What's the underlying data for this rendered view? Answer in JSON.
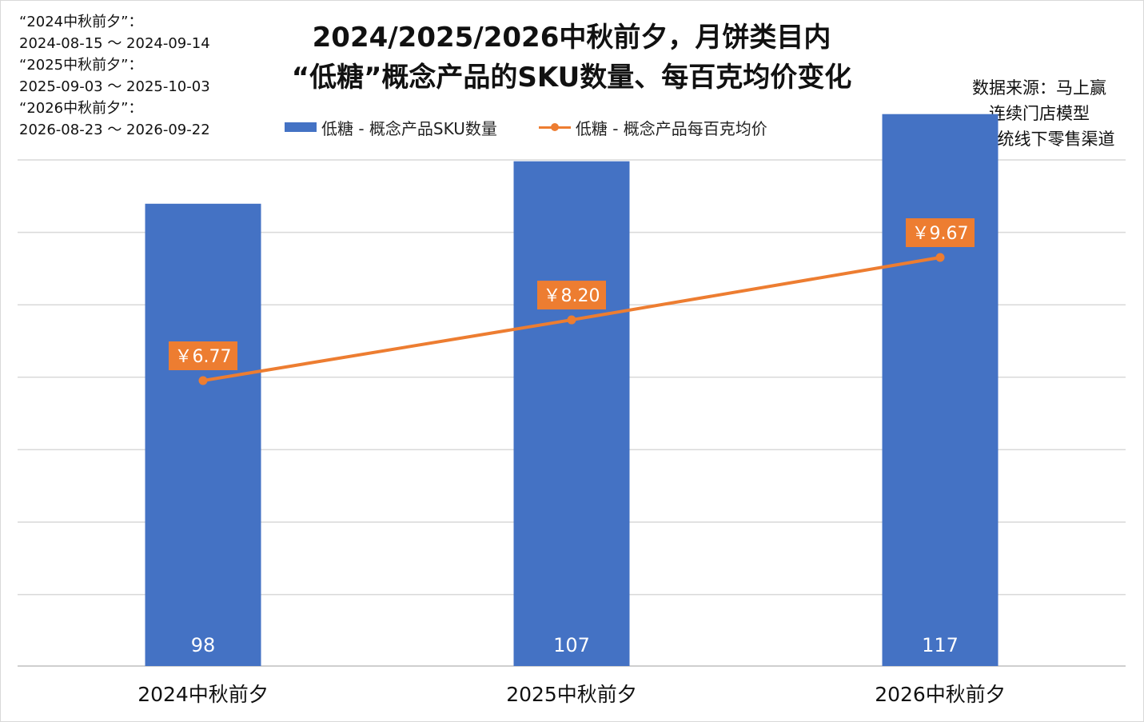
{
  "note": {
    "lines": [
      "“2024中秋前夕”：",
      "2024-08-15 ～ 2024-09-14",
      "“2025中秋前夕”：",
      "2025-09-03 ～ 2025-10-03",
      "“2026中秋前夕”：",
      "2026-08-23 ～ 2026-09-22"
    ]
  },
  "source": {
    "lines": [
      "数据来源：马上赢",
      "连续门店模型",
      "仅传统线下零售渠道"
    ]
  },
  "chart_data": {
    "type": "bar",
    "title_lines": [
      "2024/2025/2026中秋前夕，月饼类目内",
      "“低糖”概念产品的SKU数量、每百克均价变化"
    ],
    "categories": [
      "2024中秋前夕",
      "2025中秋前夕",
      "2026中秋前夕"
    ],
    "series": [
      {
        "name": "低糖 - 概念产品SKU数量",
        "type": "bar",
        "color": "#4472c4",
        "values": [
          98,
          107,
          117
        ],
        "labels": [
          "98",
          "107",
          "117"
        ]
      },
      {
        "name": "低糖 - 概念产品每百克均价",
        "type": "line",
        "color": "#ed7d31",
        "values": [
          6.77,
          8.2,
          9.67
        ],
        "labels": [
          "￥6.77",
          "￥8.20",
          "￥9.67"
        ]
      }
    ],
    "axes": {
      "y_ticks_shown": false,
      "gridlines": "horizontal"
    },
    "legend_position": "top"
  }
}
